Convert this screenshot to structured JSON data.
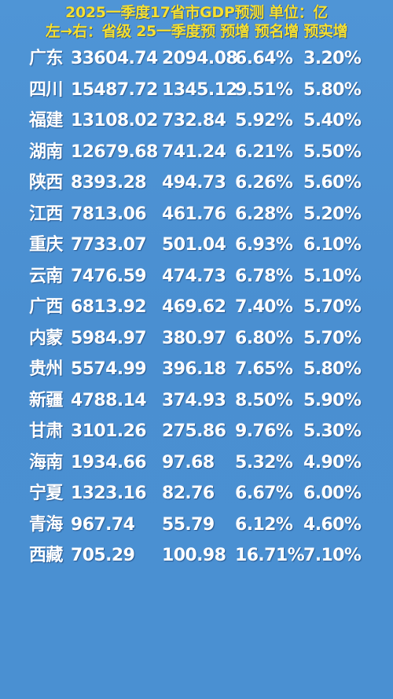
{
  "header": {
    "line1": "2025一季度17省市GDP预测 单位：亿",
    "line2": "左→右：省级 25一季度预 预增 预名增 预实增"
  },
  "colors": {
    "background": "#4a90d2",
    "header_text": "#f6df2f",
    "cell_text": "#ffffff"
  },
  "chart_data": {
    "type": "table",
    "title": "2025一季度17省市GDP预测 单位：亿",
    "subtitle": "左→右：省级 25一季度预 预增 预名增 预实增",
    "columns": [
      "省级",
      "25一季度预",
      "预增",
      "预名增",
      "预实增"
    ],
    "rows": [
      [
        "广东",
        "33604.74",
        "2094.08",
        "6.64%",
        "3.20%"
      ],
      [
        "四川",
        "15487.72",
        "1345.12",
        "9.51%",
        "5.80%"
      ],
      [
        "福建",
        "13108.02",
        "732.84",
        "5.92%",
        "5.40%"
      ],
      [
        "湖南",
        "12679.68",
        "741.24",
        "6.21%",
        "5.50%"
      ],
      [
        "陕西",
        "8393.28",
        "494.73",
        "6.26%",
        "5.60%"
      ],
      [
        "江西",
        "7813.06",
        "461.76",
        "6.28%",
        "5.20%"
      ],
      [
        "重庆",
        "7733.07",
        "501.04",
        "6.93%",
        "6.10%"
      ],
      [
        "云南",
        "7476.59",
        "474.73",
        "6.78%",
        "5.10%"
      ],
      [
        "广西",
        "6813.92",
        "469.62",
        "7.40%",
        "5.70%"
      ],
      [
        "内蒙",
        "5984.97",
        "380.97",
        "6.80%",
        "5.70%"
      ],
      [
        "贵州",
        "5574.99",
        "396.18",
        "7.65%",
        "5.80%"
      ],
      [
        "新疆",
        "4788.14",
        "374.93",
        "8.50%",
        "5.90%"
      ],
      [
        "甘肃",
        "3101.26",
        "275.86",
        "9.76%",
        "5.30%"
      ],
      [
        "海南",
        "1934.66",
        "97.68",
        "5.32%",
        "4.90%"
      ],
      [
        "宁夏",
        "1323.16",
        "82.76",
        "6.67%",
        "6.00%"
      ],
      [
        "青海",
        "967.74",
        "55.79",
        "6.12%",
        "4.60%"
      ],
      [
        "西藏",
        "705.29",
        "100.98",
        "16.71%",
        "7.10%"
      ]
    ]
  }
}
